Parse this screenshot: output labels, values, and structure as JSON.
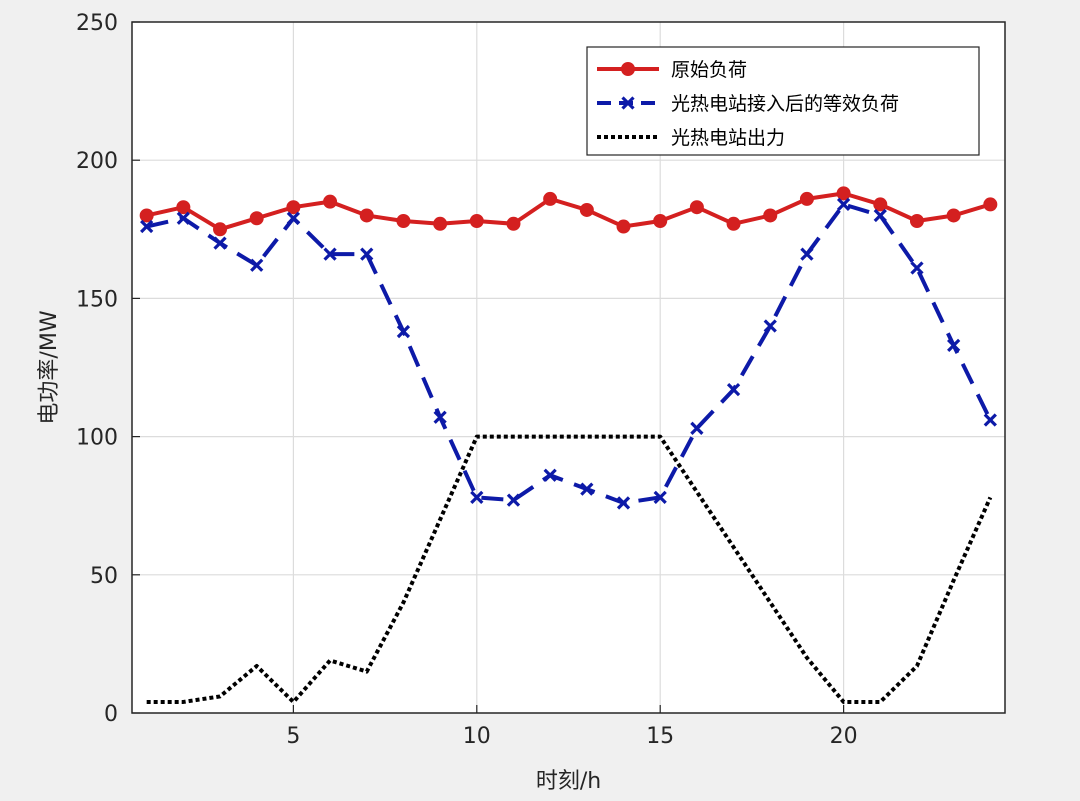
{
  "chart_data": {
    "type": "line",
    "title": "",
    "xlabel": "时刻/h",
    "ylabel": "电功率/MW",
    "xlim": [
      0.6,
      24.4
    ],
    "ylim": [
      0,
      250
    ],
    "xticks": [
      5,
      10,
      15,
      20
    ],
    "yticks": [
      0,
      50,
      100,
      150,
      200,
      250
    ],
    "grid": true,
    "legend_position": "top-right",
    "x": [
      1,
      2,
      3,
      4,
      5,
      6,
      7,
      8,
      9,
      10,
      11,
      12,
      13,
      14,
      15,
      16,
      17,
      18,
      19,
      20,
      21,
      22,
      23,
      24
    ],
    "series": [
      {
        "name": "原始负荷",
        "color": "#d42020",
        "line_style": "solid",
        "marker": "circle",
        "values": [
          180,
          183,
          175,
          179,
          183,
          185,
          180,
          178,
          177,
          178,
          177,
          186,
          182,
          176,
          178,
          183,
          177,
          180,
          186,
          188,
          184,
          178,
          180,
          184
        ]
      },
      {
        "name": "光热电站接入后的等效负荷",
        "color": "#0d1aa8",
        "line_style": "dashed",
        "marker": "x",
        "values": [
          176,
          179,
          170,
          162,
          179,
          166,
          166,
          138,
          107,
          78,
          77,
          86,
          81,
          76,
          78,
          103,
          117,
          140,
          166,
          184,
          180,
          161,
          133,
          106
        ]
      },
      {
        "name": "光热电站出力",
        "color": "#000000",
        "line_style": "dotted",
        "marker": "none",
        "values": [
          4,
          4,
          6,
          17,
          4,
          19,
          15,
          40,
          70,
          100,
          100,
          100,
          100,
          100,
          100,
          80,
          60,
          40,
          20,
          4,
          4,
          17,
          48,
          78
        ]
      }
    ]
  }
}
